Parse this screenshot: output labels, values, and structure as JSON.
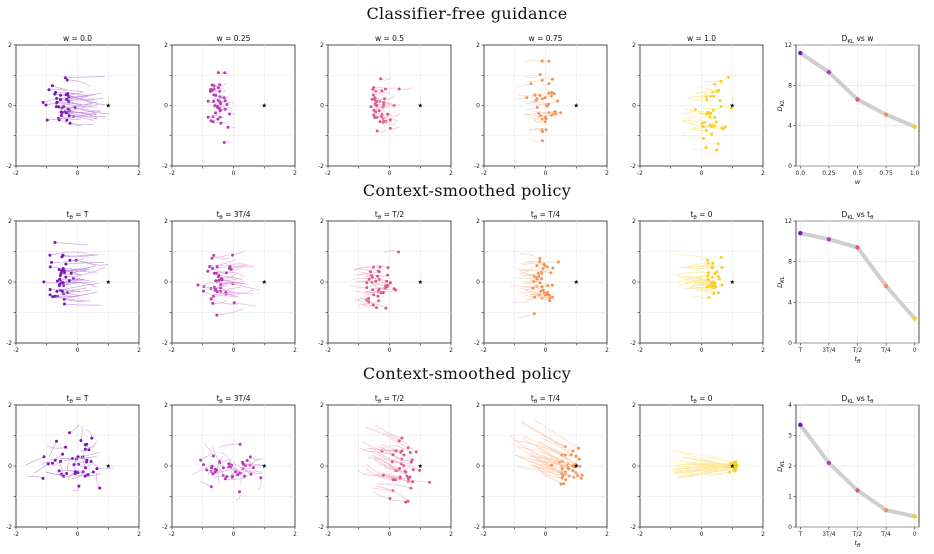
{
  "titles": {
    "row1": "Classifier-free guidance",
    "row2": "Context-smoothed policy",
    "row3": "Context-smoothed policy"
  },
  "palette": [
    "#7b16b6",
    "#b63cb4",
    "#de5a84",
    "#f39255",
    "#f6cf23"
  ],
  "target_marker": "star",
  "chart_data": [
    {
      "type": "scatter",
      "title": "w = 0.0",
      "xlim": [
        -2,
        2
      ],
      "ylim": [
        -2,
        2
      ],
      "xticks": [
        "-2",
        "0",
        "2"
      ],
      "yticks": [
        "-2",
        "0",
        "2"
      ],
      "cx": -0.55,
      "cy": 0.05,
      "sx": 0.25,
      "sy": 0.38,
      "n": 40,
      "trail": [
        1,
        0
      ],
      "trail_len": 1.0,
      "color_index": 0
    },
    {
      "type": "scatter",
      "title": "w = 0.25",
      "xlim": [
        -2,
        2
      ],
      "ylim": [
        -2,
        2
      ],
      "xticks": [
        "-2",
        "0",
        "2"
      ],
      "yticks": [
        "-2",
        "0",
        "2"
      ],
      "cx": -0.55,
      "cy": 0.0,
      "sx": 0.16,
      "sy": 0.45,
      "n": 40,
      "trail": [
        1,
        0
      ],
      "trail_len": 0.2,
      "color_index": 1
    },
    {
      "type": "scatter",
      "title": "w = 0.5",
      "xlim": [
        -2,
        2
      ],
      "ylim": [
        -2,
        2
      ],
      "xticks": [
        "-2",
        "0",
        "2"
      ],
      "yticks": [
        "-2",
        "0",
        "2"
      ],
      "cx": -0.3,
      "cy": 0.05,
      "sx": 0.2,
      "sy": 0.45,
      "n": 40,
      "trail": [
        1,
        0
      ],
      "trail_len": 0.35,
      "color_index": 2
    },
    {
      "type": "scatter",
      "title": "w = 0.75",
      "xlim": [
        -2,
        2
      ],
      "ylim": [
        -2,
        2
      ],
      "xticks": [
        "-2",
        "0",
        "2"
      ],
      "yticks": [
        "-2",
        "0",
        "2"
      ],
      "cx": 0.0,
      "cy": 0.0,
      "sx": 0.28,
      "sy": 0.5,
      "n": 40,
      "trail": [
        -1,
        0
      ],
      "trail_len": 0.45,
      "color_index": 3
    },
    {
      "type": "scatter",
      "title": "w = 1.0",
      "xlim": [
        -2,
        2
      ],
      "ylim": [
        -2,
        2
      ],
      "xticks": [
        "-2",
        "0",
        "2"
      ],
      "yticks": [
        "-2",
        "0",
        "2"
      ],
      "cx": 0.35,
      "cy": -0.25,
      "sx": 0.25,
      "sy": 0.55,
      "n": 40,
      "trail": [
        -1,
        0
      ],
      "trail_len": 0.6,
      "color_index": 4
    },
    {
      "type": "line",
      "title": "D_KL vs w",
      "xlabel": "w",
      "ylabel": "D_KL",
      "x": [
        0,
        1,
        2,
        3,
        4
      ],
      "x_tick_labels": [
        "0.0",
        "0.25",
        "0.5",
        "0.75",
        "1.0"
      ],
      "values": [
        11.2,
        9.3,
        6.6,
        5.1,
        3.9
      ],
      "ylim": [
        0,
        12
      ],
      "yticks": [
        "0",
        "4",
        "8",
        "12"
      ]
    },
    {
      "type": "scatter",
      "title": "t_θ = T",
      "xlim": [
        -2,
        2
      ],
      "ylim": [
        -2,
        2
      ],
      "xticks": [
        "-2",
        "0",
        "2"
      ],
      "yticks": [
        "-2",
        "0",
        "2"
      ],
      "cx": -0.55,
      "cy": 0.1,
      "sx": 0.22,
      "sy": 0.5,
      "n": 40,
      "trail": [
        1,
        0
      ],
      "trail_len": 1.0,
      "color_index": 0
    },
    {
      "type": "scatter",
      "title": "t_θ = 3T/4",
      "xlim": [
        -2,
        2
      ],
      "ylim": [
        -2,
        2
      ],
      "xticks": [
        "-2",
        "0",
        "2"
      ],
      "yticks": [
        "-2",
        "0",
        "2"
      ],
      "cx": -0.5,
      "cy": 0.05,
      "sx": 0.28,
      "sy": 0.45,
      "n": 40,
      "trail": [
        1,
        0
      ],
      "trail_len": 0.7,
      "color_index": 1
    },
    {
      "type": "scatter",
      "title": "t_θ = T/2",
      "xlim": [
        -2,
        2
      ],
      "ylim": [
        -2,
        2
      ],
      "xticks": [
        "-2",
        "0",
        "2"
      ],
      "yticks": [
        "-2",
        "0",
        "2"
      ],
      "cx": -0.3,
      "cy": -0.1,
      "sx": 0.25,
      "sy": 0.45,
      "n": 40,
      "trail": [
        -1,
        0
      ],
      "trail_len": 0.5,
      "color_index": 2
    },
    {
      "type": "scatter",
      "title": "t_θ = T/4",
      "xlim": [
        -2,
        2
      ],
      "ylim": [
        -2,
        2
      ],
      "xticks": [
        "-2",
        "0",
        "2"
      ],
      "yticks": [
        "-2",
        "0",
        "2"
      ],
      "cx": -0.05,
      "cy": -0.1,
      "sx": 0.2,
      "sy": 0.4,
      "n": 40,
      "trail": [
        -1,
        0
      ],
      "trail_len": 0.6,
      "color_index": 3
    },
    {
      "type": "scatter",
      "title": "t_θ = 0",
      "xlim": [
        -2,
        2
      ],
      "ylim": [
        -2,
        2
      ],
      "xticks": [
        "-2",
        "0",
        "2"
      ],
      "yticks": [
        "-2",
        "0",
        "2"
      ],
      "cx": 0.35,
      "cy": 0.05,
      "sx": 0.15,
      "sy": 0.25,
      "n": 40,
      "trail": [
        -1,
        0
      ],
      "trail_len": 0.9,
      "color_index": 4
    },
    {
      "type": "line",
      "title": "D_KL vs t_θ",
      "xlabel": "t_θ",
      "ylabel": "D_KL",
      "x": [
        0,
        1,
        2,
        3,
        4
      ],
      "x_tick_labels": [
        "T",
        "3T/4",
        "T/2",
        "T/4",
        "0"
      ],
      "values": [
        10.8,
        10.2,
        9.4,
        5.6,
        2.4
      ],
      "ylim": [
        0,
        12
      ],
      "yticks": [
        "0",
        "4",
        "8",
        "12"
      ]
    },
    {
      "type": "scatter",
      "title": "t_θ = T",
      "xlim": [
        -2,
        2
      ],
      "ylim": [
        -2,
        2
      ],
      "xticks": [
        "-2",
        "0",
        "2"
      ],
      "yticks": [
        "-2",
        "0",
        "2"
      ],
      "cx": 0.0,
      "cy": 0.0,
      "sx": 0.45,
      "sy": 0.45,
      "n": 40,
      "trail": [
        0,
        0
      ],
      "trail_len": 0.6,
      "color_index": 0
    },
    {
      "type": "scatter",
      "title": "t_θ = 3T/4",
      "xlim": [
        -2,
        2
      ],
      "ylim": [
        -2,
        2
      ],
      "xticks": [
        "-2",
        "0",
        "2"
      ],
      "yticks": [
        "-2",
        "0",
        "2"
      ],
      "cx": 0.0,
      "cy": -0.1,
      "sx": 0.55,
      "sy": 0.35,
      "n": 40,
      "trail": [
        0,
        0
      ],
      "trail_len": 0.6,
      "color_index": 1
    },
    {
      "type": "scatter",
      "title": "t_θ = T/2",
      "xlim": [
        -2,
        2
      ],
      "ylim": [
        -2,
        2
      ],
      "xticks": [
        "-2",
        "0",
        "2"
      ],
      "yticks": [
        "-2",
        "0",
        "2"
      ],
      "cx": 0.5,
      "cy": -0.15,
      "sx": 0.35,
      "sy": 0.45,
      "n": 40,
      "trail": [
        -1,
        0.5
      ],
      "trail_len": 1.0,
      "color_index": 2
    },
    {
      "type": "scatter",
      "title": "t_θ = T/4",
      "xlim": [
        -2,
        2
      ],
      "ylim": [
        -2,
        2
      ],
      "xticks": [
        "-2",
        "0",
        "2"
      ],
      "yticks": [
        "-2",
        "0",
        "2"
      ],
      "cx": 0.75,
      "cy": -0.1,
      "sx": 0.25,
      "sy": 0.3,
      "n": 40,
      "trail": [
        -1,
        0.6
      ],
      "trail_len": 1.3,
      "color_index": 3
    },
    {
      "type": "scatter",
      "title": "t_θ = 0",
      "xlim": [
        -2,
        2
      ],
      "ylim": [
        -2,
        2
      ],
      "xticks": [
        "-2",
        "0",
        "2"
      ],
      "yticks": [
        "-2",
        "0",
        "2"
      ],
      "cx": 1.05,
      "cy": 0.0,
      "sx": 0.08,
      "sy": 0.08,
      "n": 40,
      "trail": [
        -1,
        0
      ],
      "trail_len": 1.6,
      "color_index": 4
    },
    {
      "type": "line",
      "title": "D_KL vs t_θ",
      "xlabel": "t_θ",
      "ylabel": "D_KL",
      "x": [
        0,
        1,
        2,
        3,
        4
      ],
      "x_tick_labels": [
        "T",
        "3T/4",
        "T/2",
        "T/4",
        "0"
      ],
      "values": [
        3.35,
        2.1,
        1.2,
        0.55,
        0.35
      ],
      "ylim": [
        0,
        4
      ],
      "yticks": [
        "0",
        "1",
        "2",
        "3",
        "4"
      ]
    }
  ]
}
